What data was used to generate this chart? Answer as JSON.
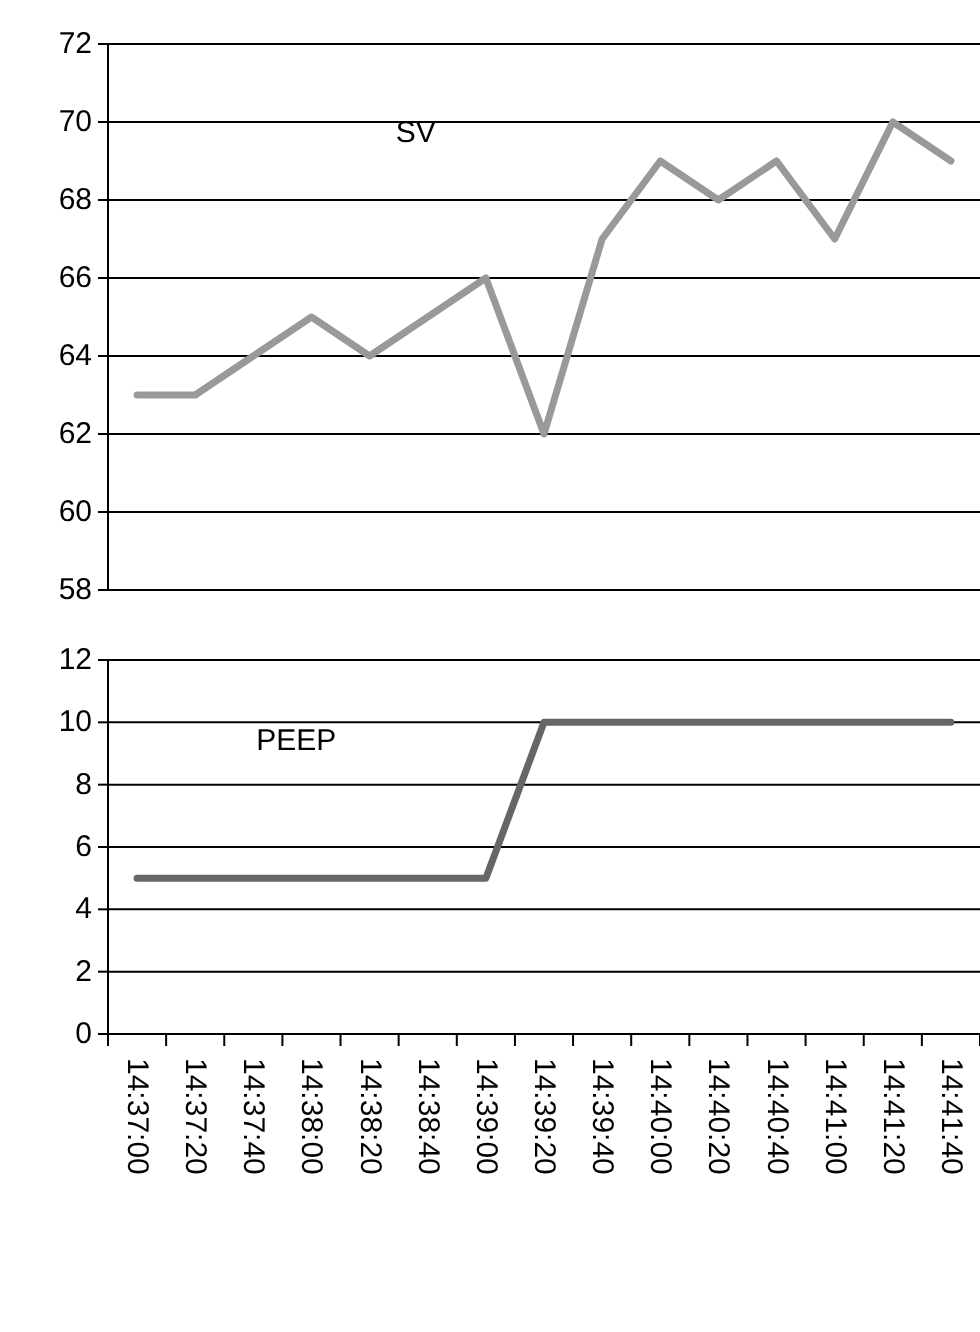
{
  "chart_data": [
    {
      "type": "line",
      "categories": [
        null,
        null,
        null,
        null,
        null,
        null,
        null,
        null,
        null,
        null,
        null,
        null,
        null,
        null,
        null
      ],
      "series": [
        {
          "name": "SV",
          "color": "#999999",
          "values": [
            63,
            63,
            64,
            65,
            64,
            65,
            66,
            62,
            67,
            69,
            68,
            69,
            67,
            70,
            69
          ]
        }
      ],
      "ylim": [
        58,
        72
      ],
      "yticks": [
        58,
        60,
        62,
        64,
        66,
        68,
        70,
        72
      ],
      "grid": "y",
      "tick_labels": "y",
      "marker": "none"
    },
    {
      "type": "line",
      "categories": [
        "14:37:00",
        "14:37:20",
        "14:37:40",
        "14:38:00",
        "14:38:20",
        "14:38:40",
        "14:39:00",
        "14:39:20",
        "14:39:40",
        "14:40:00",
        "14:40:20",
        "14:40:40",
        "14:41:00",
        "14:41:20",
        "14:41:40"
      ],
      "series": [
        {
          "name": "PEEP",
          "color": "#666666",
          "values": [
            5,
            5,
            5,
            5,
            5,
            5,
            5,
            10,
            10,
            10,
            10,
            10,
            10,
            10,
            10
          ]
        }
      ],
      "ylim": [
        0,
        12
      ],
      "yticks": [
        0,
        2,
        4,
        6,
        8,
        10,
        12
      ],
      "grid": "y",
      "marker": "none"
    }
  ]
}
